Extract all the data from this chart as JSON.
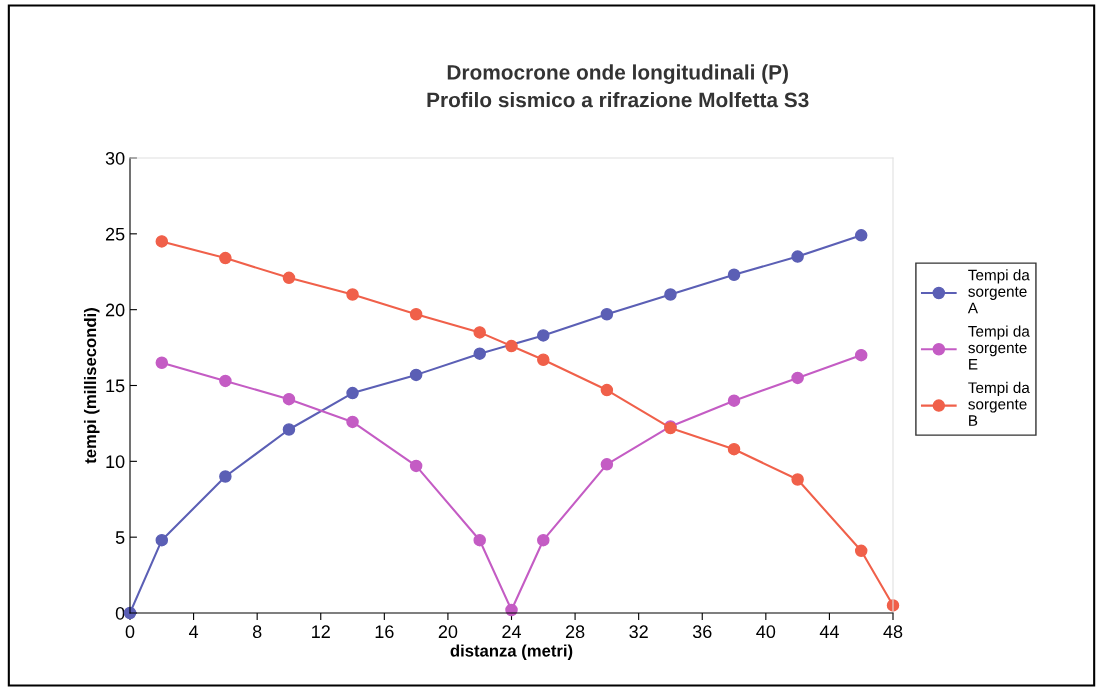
{
  "chart_data": {
    "type": "line",
    "title": "Dromocrone onde longitudinali (P)",
    "subtitle": "Profilo sismico a rifrazione Molfetta S3",
    "xlabel": "distanza (metri)",
    "ylabel": "tempi (millisecondi)",
    "xlim": [
      0,
      48
    ],
    "xticks": [
      0,
      4,
      8,
      12,
      16,
      20,
      24,
      28,
      32,
      36,
      40,
      44,
      48
    ],
    "ylim": [
      0,
      30
    ],
    "yticks": [
      0,
      5,
      10,
      15,
      20,
      25,
      30
    ],
    "grid": false,
    "legend": "right",
    "marker": "circle",
    "line_style": "solid",
    "series": [
      {
        "name": "Tempi da sorgente A",
        "color": "#5b5fb5",
        "x": [
          0,
          2,
          6,
          10,
          14,
          18,
          22,
          26,
          30,
          34,
          38,
          42,
          46
        ],
        "values": [
          0,
          4.8,
          9.0,
          12.1,
          14.5,
          15.7,
          17.1,
          18.3,
          19.7,
          21.0,
          22.3,
          23.5,
          24.9
        ]
      },
      {
        "name": "Tempi da sorgente E",
        "color": "#c45cc4",
        "x": [
          2,
          6,
          10,
          14,
          18,
          22,
          24,
          26,
          30,
          34,
          38,
          42,
          46
        ],
        "values": [
          16.5,
          15.3,
          14.1,
          12.6,
          9.7,
          4.8,
          0.2,
          4.8,
          9.8,
          12.3,
          14.0,
          15.5,
          17.0
        ]
      },
      {
        "name": "Tempi da sorgente B",
        "color": "#f0604a",
        "x": [
          2,
          6,
          10,
          14,
          18,
          22,
          24,
          26,
          30,
          34,
          38,
          42,
          46,
          48
        ],
        "values": [
          24.5,
          23.4,
          22.1,
          21.0,
          19.7,
          18.5,
          17.6,
          16.7,
          14.7,
          12.2,
          10.8,
          8.8,
          4.1,
          0.5
        ]
      }
    ]
  }
}
